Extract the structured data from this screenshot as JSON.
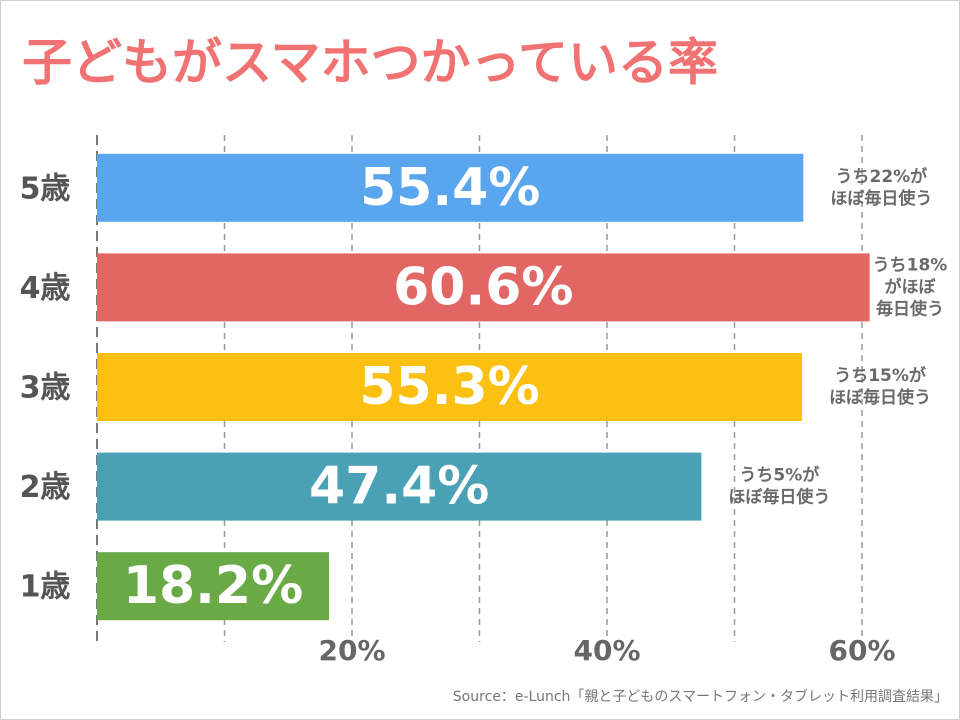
{
  "chart_data": {
    "type": "barh",
    "title": "子どもがスマホつかっている率",
    "categories": [
      "5歳",
      "4歳",
      "3歳",
      "2歳",
      "1歳"
    ],
    "values": [
      55.4,
      60.6,
      55.3,
      47.4,
      18.2
    ],
    "value_labels": [
      "55.4%",
      "60.6%",
      "55.3%",
      "47.4%",
      "18.2%"
    ],
    "colors": [
      "#5aa6ee",
      "#e26664",
      "#fbc012",
      "#4aa1b6",
      "#69aa47"
    ],
    "annotations": [
      [
        "うち22%が",
        "ほぼ毎日使う"
      ],
      [
        "うち18%",
        "がほぼ",
        "毎日使う"
      ],
      [
        "うち15%が",
        "ほぼ毎日使う"
      ],
      [
        "うち5%が",
        "ほぼ毎日使う"
      ],
      null
    ],
    "xlim": [
      0,
      65
    ],
    "xticks": [
      {
        "value": 10,
        "label": null
      },
      {
        "value": 20,
        "label": "20%"
      },
      {
        "value": 30,
        "label": null
      },
      {
        "value": 40,
        "label": "40%"
      },
      {
        "value": 50,
        "label": null
      },
      {
        "value": 60,
        "label": "60%"
      }
    ],
    "grid": true,
    "source": "Source：e-Lunch「親と子どものスマートフォン・タブレット利用調査結果」"
  }
}
